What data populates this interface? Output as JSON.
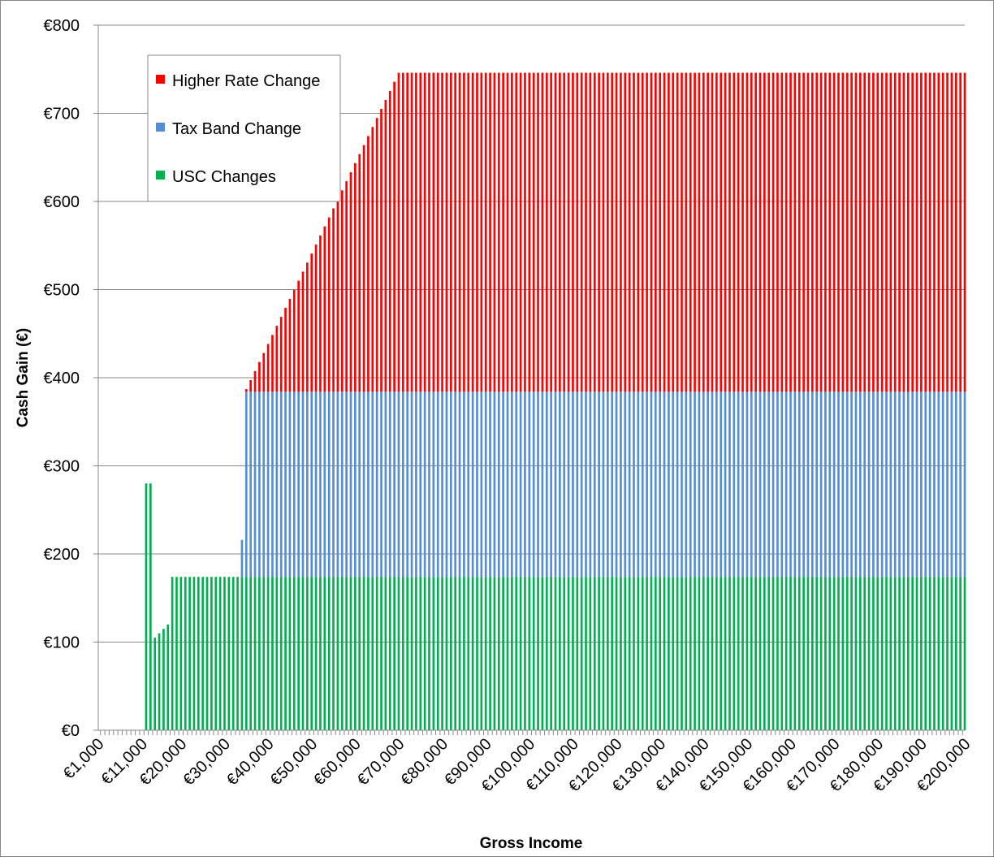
{
  "chart_data": {
    "type": "bar",
    "stacked": true,
    "title": "",
    "xlabel": "Gross Income",
    "ylabel": "Cash Gain (€)",
    "ylim": [
      0,
      800
    ],
    "y_ticks": [
      0,
      100,
      200,
      300,
      400,
      500,
      600,
      700,
      800
    ],
    "y_tick_labels": [
      "€0",
      "€100",
      "€200",
      "€300",
      "€400",
      "€500",
      "€600",
      "€700",
      "€800"
    ],
    "x_tick_labels": [
      "€1,000",
      "€11,000",
      "€20,000",
      "€30,000",
      "€40,000",
      "€50,000",
      "€60,000",
      "€70,000",
      "€80,000",
      "€90,000",
      "€100,000",
      "€110,000",
      "€120,000",
      "€130,000",
      "€140,000",
      "€150,000",
      "€160,000",
      "€170,000",
      "€180,000",
      "€190,000",
      "€200,000"
    ],
    "x_tick_values": [
      1000,
      11000,
      20000,
      30000,
      40000,
      50000,
      60000,
      70000,
      80000,
      90000,
      100000,
      110000,
      120000,
      130000,
      140000,
      150000,
      160000,
      170000,
      180000,
      190000,
      200000
    ],
    "x_range": [
      1000,
      200000
    ],
    "x_step": 1000,
    "grid": "horizontal",
    "legend_position": "top-left",
    "series": [
      {
        "name": "USC Changes",
        "color": "#00b050",
        "breakpoints": [
          [
            1000,
            0
          ],
          [
            11000,
            0
          ],
          [
            12000,
            280
          ],
          [
            13000,
            280
          ],
          [
            14000,
            105
          ],
          [
            15000,
            110
          ],
          [
            16000,
            115
          ],
          [
            17000,
            120
          ],
          [
            18000,
            174
          ],
          [
            200000,
            174
          ]
        ]
      },
      {
        "name": "Tax Band Change",
        "color": "#558ed5",
        "breakpoints": [
          [
            1000,
            0
          ],
          [
            33000,
            0
          ],
          [
            34000,
            42
          ],
          [
            35000,
            210
          ],
          [
            200000,
            210
          ]
        ]
      },
      {
        "name": "Higher Rate Change",
        "color": "#ff0000",
        "breakpoints": [
          [
            1000,
            0
          ],
          [
            34000,
            0
          ],
          [
            35000,
            3
          ],
          [
            70000,
            362
          ],
          [
            200000,
            362
          ]
        ]
      }
    ],
    "legend_order": [
      "Higher Rate Change",
      "Tax Band Change",
      "USC Changes"
    ]
  }
}
